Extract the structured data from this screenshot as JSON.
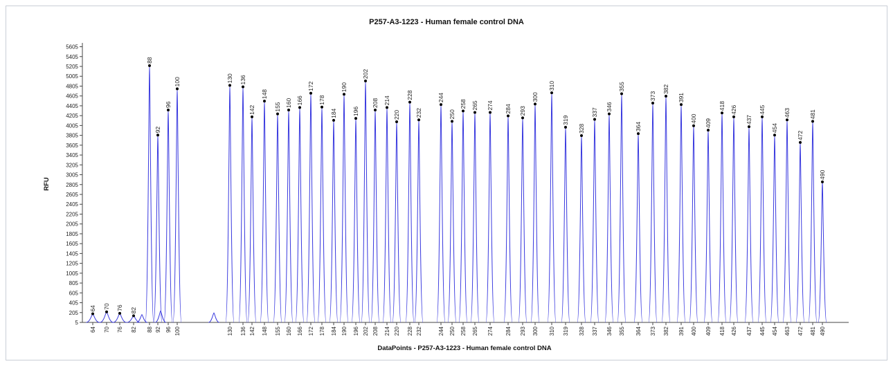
{
  "chart_data": {
    "type": "line",
    "title": "P257-A3-1223 - Human female control DNA",
    "xlabel": "DataPoints - P257-A3-1223 - Human female control DNA",
    "ylabel": "RFU",
    "y_ticks": [
      5,
      205,
      405,
      605,
      805,
      1005,
      1205,
      1405,
      1605,
      1805,
      2005,
      2205,
      2405,
      2605,
      2805,
      3005,
      3205,
      3405,
      3605,
      3805,
      4005,
      4205,
      4405,
      4605,
      4805,
      5005,
      5205,
      5405,
      5605
    ],
    "ylim": [
      5,
      5800
    ],
    "grid": false,
    "line_color": "#3a3adf",
    "marker_color": "#000000",
    "x_tick_labels": [
      "64",
      "70",
      "76",
      "82",
      "88",
      "92",
      "96",
      "100",
      "130",
      "136",
      "142",
      "148",
      "155",
      "160",
      "166",
      "172",
      "178",
      "184",
      "190",
      "196",
      "202",
      "208",
      "214",
      "220",
      "228",
      "232",
      "244",
      "250",
      "258",
      "265",
      "274",
      "284",
      "293",
      "300",
      "310",
      "319",
      "328",
      "337",
      "346",
      "355",
      "364",
      "373",
      "382",
      "391",
      "400",
      "409",
      "418",
      "426",
      "437",
      "445",
      "454",
      "463",
      "472",
      "481",
      "490"
    ],
    "peaks": [
      {
        "label": "64",
        "value": 180
      },
      {
        "label": "70",
        "value": 220
      },
      {
        "label": "76",
        "value": 190
      },
      {
        "label": "82",
        "value": 140
      },
      {
        "label": "88",
        "value": 5220
      },
      {
        "label": "92",
        "value": 3810
      },
      {
        "label": "96",
        "value": 4320
      },
      {
        "label": "100",
        "value": 4750
      },
      {
        "label": "130",
        "value": 4820
      },
      {
        "label": "136",
        "value": 4790
      },
      {
        "label": "142",
        "value": 4180
      },
      {
        "label": "148",
        "value": 4500
      },
      {
        "label": "155",
        "value": 4240
      },
      {
        "label": "160",
        "value": 4320
      },
      {
        "label": "166",
        "value": 4370
      },
      {
        "label": "172",
        "value": 4660
      },
      {
        "label": "178",
        "value": 4380
      },
      {
        "label": "184",
        "value": 4110
      },
      {
        "label": "190",
        "value": 4640
      },
      {
        "label": "196",
        "value": 4150
      },
      {
        "label": "202",
        "value": 4910
      },
      {
        "label": "208",
        "value": 4320
      },
      {
        "label": "214",
        "value": 4370
      },
      {
        "label": "220",
        "value": 4080
      },
      {
        "label": "228",
        "value": 4480
      },
      {
        "label": "232",
        "value": 4120
      },
      {
        "label": "244",
        "value": 4430
      },
      {
        "label": "250",
        "value": 4090
      },
      {
        "label": "258",
        "value": 4300
      },
      {
        "label": "265",
        "value": 4270
      },
      {
        "label": "274",
        "value": 4270
      },
      {
        "label": "284",
        "value": 4200
      },
      {
        "label": "293",
        "value": 4160
      },
      {
        "label": "300",
        "value": 4440
      },
      {
        "label": "310",
        "value": 4670
      },
      {
        "label": "319",
        "value": 3970
      },
      {
        "label": "328",
        "value": 3800
      },
      {
        "label": "337",
        "value": 4130
      },
      {
        "label": "346",
        "value": 4240
      },
      {
        "label": "355",
        "value": 4650
      },
      {
        "label": "364",
        "value": 3840
      },
      {
        "label": "373",
        "value": 4460
      },
      {
        "label": "382",
        "value": 4600
      },
      {
        "label": "391",
        "value": 4430
      },
      {
        "label": "400",
        "value": 4000
      },
      {
        "label": "409",
        "value": 3910
      },
      {
        "label": "418",
        "value": 4260
      },
      {
        "label": "426",
        "value": 4180
      },
      {
        "label": "437",
        "value": 3980
      },
      {
        "label": "445",
        "value": 4180
      },
      {
        "label": "454",
        "value": 3810
      },
      {
        "label": "463",
        "value": 4120
      },
      {
        "label": "472",
        "value": 3660
      },
      {
        "label": "481",
        "value": 4090
      },
      {
        "label": "490",
        "value": 2860
      }
    ],
    "unlabeled_peaks": [
      {
        "value": 165
      },
      {
        "value": 240
      },
      {
        "value": 200
      }
    ]
  }
}
